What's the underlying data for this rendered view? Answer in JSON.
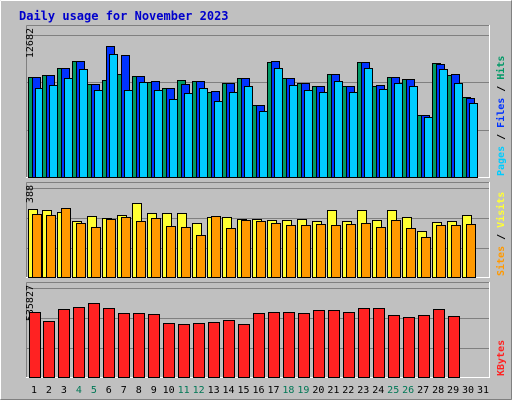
{
  "title": "Daily usage for November 2023",
  "colors": {
    "frame_bg": "#c0c0c0",
    "plot_bg": "#c0c0c0",
    "title": "#0000cc",
    "pages": "#00ccff",
    "files": "#0033ff",
    "hits": "#009966",
    "visits": "#ffff33",
    "sites": "#ff9900",
    "kbytes": "#ff2222",
    "day_normal": "#000000",
    "day_weekend": "#007755"
  },
  "chart_data": [
    {
      "type": "bar",
      "panel": "top",
      "ymax_label": "12682",
      "ymax": 12682,
      "right_labels": [
        {
          "text": "Pages",
          "color": "#00ccff"
        },
        {
          "text": "Files",
          "color": "#0033ff"
        },
        {
          "text": "Hits",
          "color": "#009966"
        }
      ],
      "categories": [
        "1",
        "2",
        "3",
        "4",
        "5",
        "6",
        "7",
        "8",
        "9",
        "10",
        "11",
        "12",
        "13",
        "14",
        "15",
        "16",
        "17",
        "18",
        "19",
        "20",
        "21",
        "22",
        "23",
        "24",
        "25",
        "26",
        "27",
        "28",
        "29",
        "30",
        "31"
      ],
      "series": [
        {
          "name": "Hits",
          "values": [
            9640,
            9890,
            10560,
            11270,
            8960,
            9400,
            10010,
            9790,
            9220,
            8650,
            9400,
            9260,
            8210,
            9080,
            9600,
            6990,
            11130,
            9580,
            9080,
            8770,
            9940,
            8770,
            11130,
            8830,
            9690,
            9450,
            5980,
            11020,
            9870,
            7780,
            0
          ]
        },
        {
          "name": "Files",
          "values": [
            9660,
            9900,
            10570,
            11270,
            8960,
            12680,
            11840,
            9810,
            9250,
            8660,
            8990,
            9260,
            8290,
            9110,
            9600,
            6990,
            11200,
            9590,
            9090,
            8770,
            9960,
            8780,
            11130,
            8910,
            9720,
            9470,
            6000,
            10960,
            10010,
            7650,
            0
          ]
        },
        {
          "name": "Pages",
          "values": [
            8640,
            8940,
            9620,
            10490,
            8400,
            11920,
            8440,
            9160,
            8460,
            7530,
            8130,
            8590,
            7350,
            8190,
            8820,
            6370,
            10600,
            8910,
            8450,
            8270,
            9320,
            8190,
            10530,
            8530,
            9110,
            8840,
            5820,
            10420,
            9110,
            7170,
            0
          ]
        }
      ]
    },
    {
      "type": "bar",
      "panel": "middle",
      "ymax_label": "388",
      "ymax": 388,
      "right_labels": [
        {
          "text": "Sites",
          "color": "#ff9900"
        },
        {
          "text": "Visits",
          "color": "#ffff33"
        }
      ],
      "categories": [
        "1",
        "2",
        "3",
        "4",
        "5",
        "6",
        "7",
        "8",
        "9",
        "10",
        "11",
        "12",
        "13",
        "14",
        "15",
        "16",
        "17",
        "18",
        "19",
        "20",
        "21",
        "22",
        "23",
        "24",
        "25",
        "26",
        "27",
        "28",
        "29",
        "30",
        "31"
      ],
      "series": [
        {
          "name": "Visits",
          "values": [
            356,
            351,
            342,
            293,
            318,
            311,
            325,
            388,
            336,
            336,
            337,
            284,
            317,
            317,
            305,
            305,
            300,
            299,
            306,
            291,
            350,
            296,
            351,
            297,
            351,
            315,
            240,
            290,
            294,
            324,
            0
          ]
        },
        {
          "name": "Sites",
          "values": [
            330,
            325,
            362,
            282,
            261,
            302,
            313,
            291,
            310,
            265,
            263,
            220,
            318,
            259,
            301,
            296,
            281,
            274,
            271,
            278,
            273,
            279,
            283,
            264,
            299,
            256,
            208,
            273,
            274,
            277,
            0
          ]
        }
      ]
    },
    {
      "type": "bar",
      "panel": "bottom",
      "ymax_label": "535827",
      "ymax": 535827,
      "right_labels": [
        {
          "text": "KBytes",
          "color": "#ff2222"
        }
      ],
      "categories": [
        "1",
        "2",
        "3",
        "4",
        "5",
        "6",
        "7",
        "8",
        "9",
        "10",
        "11",
        "12",
        "13",
        "14",
        "15",
        "16",
        "17",
        "18",
        "19",
        "20",
        "21",
        "22",
        "23",
        "24",
        "25",
        "26",
        "27",
        "28",
        "29",
        "30",
        "31"
      ],
      "series": [
        {
          "name": "KBytes",
          "values": [
            469000,
            403220,
            496000,
            510000,
            535827,
            498000,
            467000,
            466000,
            458000,
            394000,
            381000,
            393000,
            395000,
            410000,
            385000,
            465000,
            474000,
            473000,
            460000,
            487000,
            484000,
            472000,
            500000,
            501000,
            449000,
            436000,
            450000,
            491000,
            441000,
            0,
            0
          ]
        }
      ]
    }
  ],
  "days": [
    {
      "label": "1",
      "weekend": false
    },
    {
      "label": "2",
      "weekend": false
    },
    {
      "label": "3",
      "weekend": false
    },
    {
      "label": "4",
      "weekend": true
    },
    {
      "label": "5",
      "weekend": true
    },
    {
      "label": "6",
      "weekend": false
    },
    {
      "label": "7",
      "weekend": false
    },
    {
      "label": "8",
      "weekend": false
    },
    {
      "label": "9",
      "weekend": false
    },
    {
      "label": "10",
      "weekend": false
    },
    {
      "label": "11",
      "weekend": true
    },
    {
      "label": "12",
      "weekend": true
    },
    {
      "label": "13",
      "weekend": false
    },
    {
      "label": "14",
      "weekend": false
    },
    {
      "label": "15",
      "weekend": false
    },
    {
      "label": "16",
      "weekend": false
    },
    {
      "label": "17",
      "weekend": false
    },
    {
      "label": "18",
      "weekend": true
    },
    {
      "label": "19",
      "weekend": true
    },
    {
      "label": "20",
      "weekend": false
    },
    {
      "label": "21",
      "weekend": false
    },
    {
      "label": "22",
      "weekend": false
    },
    {
      "label": "23",
      "weekend": false
    },
    {
      "label": "24",
      "weekend": false
    },
    {
      "label": "25",
      "weekend": true
    },
    {
      "label": "26",
      "weekend": true
    },
    {
      "label": "27",
      "weekend": false
    },
    {
      "label": "28",
      "weekend": false
    },
    {
      "label": "29",
      "weekend": false
    },
    {
      "label": "30",
      "weekend": false
    },
    {
      "label": "31",
      "weekend": false
    }
  ]
}
